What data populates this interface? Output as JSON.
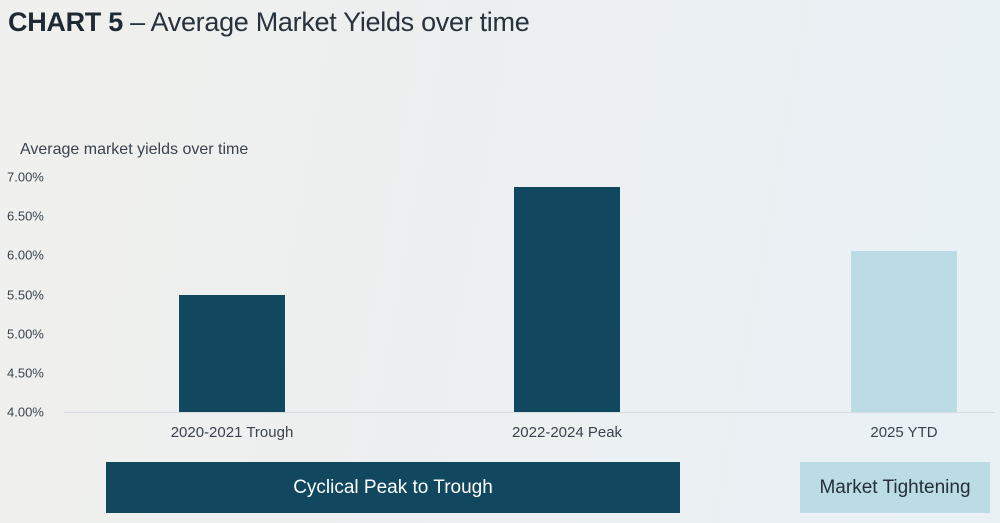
{
  "title": {
    "prefix": "CHART 5",
    "rest": "– Average Market Yields over time"
  },
  "chart_data": {
    "type": "bar",
    "title": "Average market yields over time",
    "xlabel": "",
    "ylabel": "",
    "unit": "%",
    "categories": [
      "2020-2021 Trough",
      "2022-2024 Peak",
      "2025 YTD"
    ],
    "values": [
      5.5,
      6.87,
      6.05
    ],
    "ylim": [
      4.0,
      7.0
    ],
    "ytick_step": 0.5,
    "ytick_labels": [
      "7.00%",
      "6.50%",
      "6.00%",
      "5.50%",
      "5.00%",
      "4.50%",
      "4.00%"
    ],
    "grid": false,
    "legend": false,
    "bar_colors": [
      "#11475f",
      "#11475f",
      "#bbdce4"
    ]
  },
  "annotations": [
    {
      "label": "Cyclical Peak to Trough",
      "style": "dark"
    },
    {
      "label": "Market Tightening",
      "style": "light"
    }
  ],
  "colors": {
    "dark_teal": "#11475f",
    "light_blue": "#bbdce4",
    "axis_line": "#d5dbe0",
    "title_text": "#1e2933",
    "body_text": "#39434d",
    "banner_text_light": "#ffffff",
    "banner_text_dark": "#242f38"
  }
}
